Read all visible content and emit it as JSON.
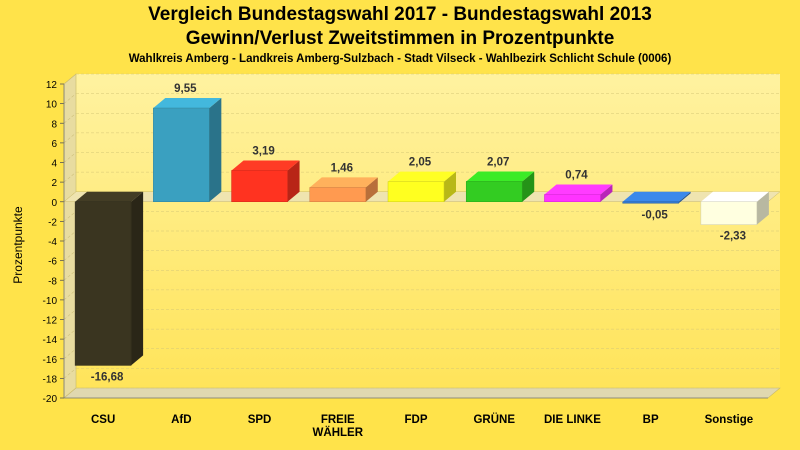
{
  "title": "Vergleich Bundestagswahl 2017 - Bundestagswahl 2013",
  "subtitle": "Gewinn/Verlust Zweitstimmen in Prozentpunkte",
  "subsubtitle": "Wahlkreis Amberg - Landkreis Amberg-Sulzbach - Stadt Vilseck - Wahlbezirk Schlicht Schule (0006)",
  "colors": {
    "background": "#ffe34a",
    "plot_top": "#fff2a0",
    "plot_bottom": "#ffe45a"
  },
  "chart_data": {
    "type": "bar",
    "title": "Vergleich Bundestagswahl 2017 - Bundestagswahl 2013",
    "subtitle": "Gewinn/Verlust Zweitstimmen in Prozentpunkte",
    "xlabel": "",
    "ylabel": "Prozentpunkte",
    "ylim": [
      -20,
      12
    ],
    "ytick_step": 2,
    "grid": true,
    "categories": [
      "CSU",
      "AfD",
      "SPD",
      "FREIE\nWÄHLER",
      "FDP",
      "GRÜNE",
      "DIE LINKE",
      "BP",
      "Sonstige"
    ],
    "values": [
      -16.68,
      9.55,
      3.19,
      1.46,
      2.05,
      2.07,
      0.74,
      -0.05,
      -2.33
    ],
    "value_labels": [
      "-16,68",
      "9,55",
      "3,19",
      "1,46",
      "2,05",
      "2,07",
      "0,74",
      "-0,05",
      "-2,33"
    ],
    "bar_colors": [
      "#3a3520",
      "#3aa0c0",
      "#ff3320",
      "#ff9a50",
      "#ffff20",
      "#33cc22",
      "#ff33ff",
      "#3377cc",
      "#ffffe0"
    ]
  }
}
